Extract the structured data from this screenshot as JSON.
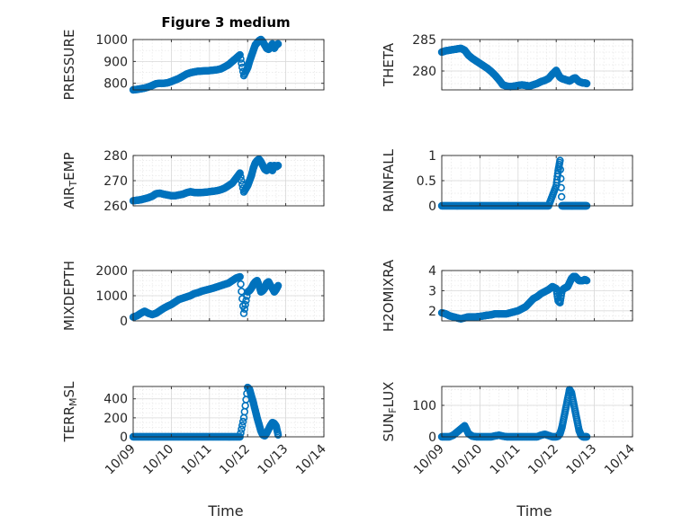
{
  "figure": {
    "title": "Figure 3 medium",
    "xlabel": "Time",
    "marker_color": "#0072BD"
  },
  "chart_data": [
    {
      "type": "scatter",
      "id": "pressure",
      "title": "Figure 3 medium",
      "ylabel_parts": [
        "PRESSURE"
      ],
      "ylim": [
        770,
        1000
      ],
      "yticks": [
        800,
        900,
        1000
      ],
      "ytick_labels": [
        "800",
        "900",
        "1000"
      ],
      "xlim": [
        0,
        5
      ],
      "xticks": [
        0,
        1,
        2,
        3,
        4,
        5
      ],
      "xtick_labels": [
        "10/09",
        "10/10",
        "10/11",
        "10/12",
        "10/13",
        "10/14"
      ],
      "series": [
        {
          "name": "PRESSURE",
          "x": [
            0.0,
            0.1,
            0.2,
            0.3,
            0.4,
            0.5,
            0.6,
            0.7,
            0.8,
            0.9,
            1.0,
            1.1,
            1.2,
            1.3,
            1.4,
            1.5,
            1.6,
            1.7,
            1.8,
            1.9,
            2.0,
            2.1,
            2.2,
            2.3,
            2.4,
            2.5,
            2.6,
            2.7,
            2.8,
            2.9,
            3.0,
            3.05,
            3.1,
            3.15,
            3.2,
            3.25,
            3.3,
            3.35,
            3.4,
            3.45,
            3.5,
            3.55,
            3.6,
            3.65,
            3.7,
            3.75,
            3.8
          ],
          "y": [
            770,
            772,
            775,
            778,
            783,
            790,
            798,
            800,
            800,
            802,
            808,
            815,
            822,
            832,
            842,
            848,
            852,
            855,
            856,
            857,
            858,
            860,
            862,
            866,
            875,
            885,
            900,
            915,
            930,
            835,
            870,
            900,
            925,
            950,
            975,
            985,
            995,
            1000,
            990,
            975,
            960,
            955,
            965,
            980,
            960,
            975,
            980
          ]
        }
      ]
    },
    {
      "type": "scatter",
      "id": "theta",
      "title": "",
      "ylabel_parts": [
        "THETA"
      ],
      "ylim": [
        277,
        285
      ],
      "yticks": [
        280,
        285
      ],
      "ytick_labels": [
        "280",
        "285"
      ],
      "xlim": [
        0,
        5
      ],
      "xticks": [
        0,
        1,
        2,
        3,
        4,
        5
      ],
      "xtick_labels": [
        "10/09",
        "10/10",
        "10/11",
        "10/12",
        "10/13",
        "10/14"
      ],
      "series": [
        {
          "name": "THETA",
          "x": [
            0.0,
            0.1,
            0.2,
            0.3,
            0.4,
            0.5,
            0.6,
            0.7,
            0.8,
            0.9,
            1.0,
            1.1,
            1.2,
            1.3,
            1.4,
            1.5,
            1.6,
            1.7,
            1.8,
            1.9,
            2.0,
            2.1,
            2.2,
            2.3,
            2.4,
            2.5,
            2.6,
            2.7,
            2.8,
            2.9,
            3.0,
            3.05,
            3.1,
            3.15,
            3.2,
            3.25,
            3.3,
            3.35,
            3.4,
            3.45,
            3.5,
            3.55,
            3.6,
            3.65,
            3.7,
            3.75,
            3.8
          ],
          "y": [
            283.0,
            283.2,
            283.3,
            283.4,
            283.5,
            283.6,
            283.3,
            282.5,
            282.0,
            281.6,
            281.2,
            280.8,
            280.4,
            279.9,
            279.3,
            278.6,
            277.8,
            277.6,
            277.5,
            277.6,
            277.7,
            277.8,
            277.7,
            277.6,
            277.8,
            278.0,
            278.3,
            278.5,
            278.8,
            279.5,
            280.1,
            279.5,
            279.0,
            278.8,
            278.7,
            278.6,
            278.5,
            278.4,
            278.6,
            278.8,
            278.9,
            278.6,
            278.3,
            278.2,
            278.1,
            278.1,
            278.0
          ]
        }
      ]
    },
    {
      "type": "scatter",
      "id": "air_temp",
      "title": "",
      "ylabel_parts": [
        "AIR",
        "T",
        "EMP"
      ],
      "ylim": [
        260,
        280
      ],
      "yticks": [
        260,
        270,
        280
      ],
      "ytick_labels": [
        "260",
        "270",
        "280"
      ],
      "xlim": [
        0,
        5
      ],
      "xticks": [
        0,
        1,
        2,
        3,
        4,
        5
      ],
      "xtick_labels": [
        "10/09",
        "10/10",
        "10/11",
        "10/12",
        "10/13",
        "10/14"
      ],
      "series": [
        {
          "name": "AIR_TEMP",
          "x": [
            0.0,
            0.1,
            0.2,
            0.3,
            0.4,
            0.5,
            0.6,
            0.7,
            0.8,
            0.9,
            1.0,
            1.1,
            1.2,
            1.3,
            1.4,
            1.5,
            1.6,
            1.7,
            1.8,
            1.9,
            2.0,
            2.1,
            2.2,
            2.3,
            2.4,
            2.5,
            2.6,
            2.7,
            2.8,
            2.9,
            3.0,
            3.05,
            3.1,
            3.15,
            3.2,
            3.25,
            3.3,
            3.35,
            3.4,
            3.45,
            3.5,
            3.55,
            3.6,
            3.65,
            3.7,
            3.75,
            3.8
          ],
          "y": [
            262.0,
            262.2,
            262.4,
            262.8,
            263.2,
            263.8,
            264.8,
            265.0,
            264.6,
            264.3,
            264.0,
            264.0,
            264.3,
            264.6,
            265.2,
            265.6,
            265.3,
            265.2,
            265.3,
            265.4,
            265.6,
            265.8,
            266.0,
            266.4,
            267.0,
            268.0,
            269.0,
            271.0,
            273.0,
            265.5,
            268.0,
            270.0,
            272.0,
            275.0,
            277.0,
            278.0,
            278.5,
            277.5,
            276.0,
            274.5,
            274.0,
            275.0,
            276.0,
            274.0,
            276.0,
            275.5,
            276.0
          ]
        }
      ]
    },
    {
      "type": "scatter",
      "id": "rainfall",
      "title": "",
      "ylabel_parts": [
        "RAINFALL"
      ],
      "ylim": [
        0,
        1
      ],
      "yticks": [
        0,
        0.5,
        1
      ],
      "ytick_labels": [
        "0",
        "0.5",
        "1"
      ],
      "xlim": [
        0,
        5
      ],
      "xticks": [
        0,
        1,
        2,
        3,
        4,
        5
      ],
      "xtick_labels": [
        "10/09",
        "10/10",
        "10/11",
        "10/12",
        "10/13",
        "10/14"
      ],
      "series": [
        {
          "name": "RAINFALL",
          "x": [
            0.0,
            0.1,
            0.2,
            0.3,
            0.4,
            0.5,
            0.6,
            0.7,
            0.8,
            0.9,
            1.0,
            1.1,
            1.2,
            1.3,
            1.4,
            1.5,
            1.6,
            1.7,
            1.8,
            1.9,
            2.0,
            2.1,
            2.2,
            2.3,
            2.4,
            2.5,
            2.6,
            2.7,
            2.8,
            2.9,
            3.0,
            3.05,
            3.1,
            3.15,
            3.2,
            3.25,
            3.3,
            3.35,
            3.4,
            3.45,
            3.5,
            3.55,
            3.6,
            3.65,
            3.7,
            3.75,
            3.8
          ],
          "y": [
            0,
            0,
            0,
            0,
            0,
            0,
            0,
            0,
            0,
            0,
            0,
            0,
            0,
            0,
            0,
            0,
            0,
            0,
            0,
            0,
            0,
            0,
            0,
            0,
            0,
            0,
            0,
            0,
            0,
            0.2,
            0.4,
            0.7,
            0.9,
            0,
            0,
            0,
            0,
            0,
            0,
            0,
            0,
            0,
            0,
            0,
            0,
            0,
            0
          ]
        }
      ]
    },
    {
      "type": "scatter",
      "id": "mixdepth",
      "title": "",
      "ylabel_parts": [
        "MIXDEPTH"
      ],
      "ylim": [
        0,
        2000
      ],
      "yticks": [
        0,
        1000,
        2000
      ],
      "ytick_labels": [
        "0",
        "1000",
        "2000"
      ],
      "xlim": [
        0,
        5
      ],
      "xticks": [
        0,
        1,
        2,
        3,
        4,
        5
      ],
      "xtick_labels": [
        "10/09",
        "10/10",
        "10/11",
        "10/12",
        "10/13",
        "10/14"
      ],
      "series": [
        {
          "name": "MIXDEPTH",
          "x": [
            0.0,
            0.1,
            0.2,
            0.3,
            0.4,
            0.5,
            0.6,
            0.7,
            0.8,
            0.9,
            1.0,
            1.1,
            1.2,
            1.3,
            1.4,
            1.5,
            1.6,
            1.7,
            1.8,
            1.9,
            2.0,
            2.1,
            2.2,
            2.3,
            2.4,
            2.5,
            2.6,
            2.7,
            2.8,
            2.9,
            3.0,
            3.05,
            3.1,
            3.15,
            3.2,
            3.25,
            3.3,
            3.35,
            3.4,
            3.45,
            3.5,
            3.55,
            3.6,
            3.65,
            3.7,
            3.75,
            3.8
          ],
          "y": [
            150,
            200,
            300,
            380,
            300,
            250,
            300,
            400,
            500,
            580,
            650,
            750,
            850,
            900,
            950,
            1000,
            1080,
            1120,
            1180,
            1220,
            1260,
            1300,
            1350,
            1400,
            1450,
            1500,
            1600,
            1700,
            1750,
            300,
            1150,
            1200,
            1300,
            1450,
            1550,
            1600,
            1400,
            1150,
            1200,
            1300,
            1500,
            1550,
            1400,
            1300,
            1150,
            1250,
            1400
          ]
        }
      ]
    },
    {
      "type": "scatter",
      "id": "h2omixra",
      "title": "",
      "ylabel_parts": [
        "H2OMIXRA"
      ],
      "ylim": [
        1.5,
        4
      ],
      "yticks": [
        2,
        3,
        4
      ],
      "ytick_labels": [
        "2",
        "3",
        "4"
      ],
      "xlim": [
        0,
        5
      ],
      "xticks": [
        0,
        1,
        2,
        3,
        4,
        5
      ],
      "xtick_labels": [
        "10/09",
        "10/10",
        "10/11",
        "10/12",
        "10/13",
        "10/14"
      ],
      "series": [
        {
          "name": "H2OMIXRA",
          "x": [
            0.0,
            0.1,
            0.2,
            0.3,
            0.4,
            0.5,
            0.6,
            0.7,
            0.8,
            0.9,
            1.0,
            1.1,
            1.2,
            1.3,
            1.4,
            1.5,
            1.6,
            1.7,
            1.8,
            1.9,
            2.0,
            2.1,
            2.2,
            2.3,
            2.4,
            2.5,
            2.6,
            2.7,
            2.8,
            2.9,
            3.0,
            3.05,
            3.1,
            3.15,
            3.2,
            3.25,
            3.3,
            3.35,
            3.4,
            3.45,
            3.5,
            3.55,
            3.6,
            3.65,
            3.7,
            3.75,
            3.8
          ],
          "y": [
            1.9,
            1.85,
            1.75,
            1.7,
            1.65,
            1.6,
            1.65,
            1.7,
            1.7,
            1.7,
            1.72,
            1.75,
            1.78,
            1.8,
            1.85,
            1.85,
            1.85,
            1.85,
            1.9,
            1.95,
            2.0,
            2.1,
            2.2,
            2.4,
            2.6,
            2.7,
            2.85,
            2.95,
            3.05,
            3.2,
            3.1,
            2.5,
            2.4,
            3.0,
            3.1,
            3.15,
            3.2,
            3.4,
            3.6,
            3.7,
            3.7,
            3.6,
            3.5,
            3.5,
            3.5,
            3.55,
            3.5
          ]
        }
      ]
    },
    {
      "type": "scatter",
      "id": "terr_msl",
      "title": "",
      "ylabel_parts": [
        "TERR",
        "M",
        "SL"
      ],
      "ylim": [
        0,
        530
      ],
      "yticks": [
        0,
        200,
        400
      ],
      "ytick_labels": [
        "0",
        "200",
        "400"
      ],
      "xlim": [
        0,
        5
      ],
      "xticks": [
        0,
        1,
        2,
        3,
        4,
        5
      ],
      "xtick_labels": [
        "10/09",
        "10/10",
        "10/11",
        "10/12",
        "10/13",
        "10/14"
      ],
      "series": [
        {
          "name": "TERR_MSL",
          "x": [
            0.0,
            0.1,
            0.2,
            0.3,
            0.4,
            0.5,
            0.6,
            0.7,
            0.8,
            0.9,
            1.0,
            1.1,
            1.2,
            1.3,
            1.4,
            1.5,
            1.6,
            1.7,
            1.8,
            1.9,
            2.0,
            2.1,
            2.2,
            2.3,
            2.4,
            2.5,
            2.6,
            2.7,
            2.8,
            2.9,
            3.0,
            3.05,
            3.1,
            3.15,
            3.2,
            3.25,
            3.3,
            3.35,
            3.4,
            3.45,
            3.5,
            3.55,
            3.6,
            3.65,
            3.7,
            3.75,
            3.8
          ],
          "y": [
            0,
            0,
            0,
            0,
            0,
            0,
            0,
            0,
            0,
            0,
            0,
            0,
            0,
            0,
            0,
            0,
            0,
            0,
            0,
            0,
            0,
            0,
            0,
            0,
            0,
            0,
            0,
            0,
            0,
            200,
            520,
            500,
            430,
            360,
            280,
            200,
            130,
            60,
            20,
            10,
            40,
            80,
            120,
            150,
            140,
            110,
            20
          ]
        }
      ]
    },
    {
      "type": "scatter",
      "id": "sun_flux",
      "title": "",
      "ylabel_parts": [
        "SUN",
        "F",
        "LUX"
      ],
      "ylim": [
        0,
        160
      ],
      "yticks": [
        0,
        100
      ],
      "ytick_labels": [
        "0",
        "100"
      ],
      "xlim": [
        0,
        5
      ],
      "xticks": [
        0,
        1,
        2,
        3,
        4,
        5
      ],
      "xtick_labels": [
        "10/09",
        "10/10",
        "10/11",
        "10/12",
        "10/13",
        "10/14"
      ],
      "series": [
        {
          "name": "SUN_FLUX",
          "x": [
            0.0,
            0.1,
            0.2,
            0.3,
            0.4,
            0.5,
            0.6,
            0.7,
            0.8,
            0.9,
            1.0,
            1.1,
            1.2,
            1.3,
            1.4,
            1.5,
            1.6,
            1.7,
            1.8,
            1.9,
            2.0,
            2.1,
            2.2,
            2.3,
            2.4,
            2.5,
            2.6,
            2.7,
            2.8,
            2.9,
            3.0,
            3.05,
            3.1,
            3.15,
            3.2,
            3.25,
            3.3,
            3.35,
            3.4,
            3.45,
            3.5,
            3.55,
            3.6,
            3.65,
            3.7,
            3.75,
            3.8
          ],
          "y": [
            0,
            0,
            0,
            5,
            15,
            25,
            35,
            10,
            2,
            0,
            0,
            0,
            0,
            0,
            3,
            5,
            2,
            0,
            0,
            0,
            0,
            0,
            0,
            0,
            0,
            0,
            5,
            8,
            4,
            0,
            0,
            2,
            10,
            30,
            60,
            90,
            120,
            150,
            140,
            110,
            80,
            50,
            20,
            5,
            0,
            0,
            0
          ]
        }
      ]
    }
  ]
}
